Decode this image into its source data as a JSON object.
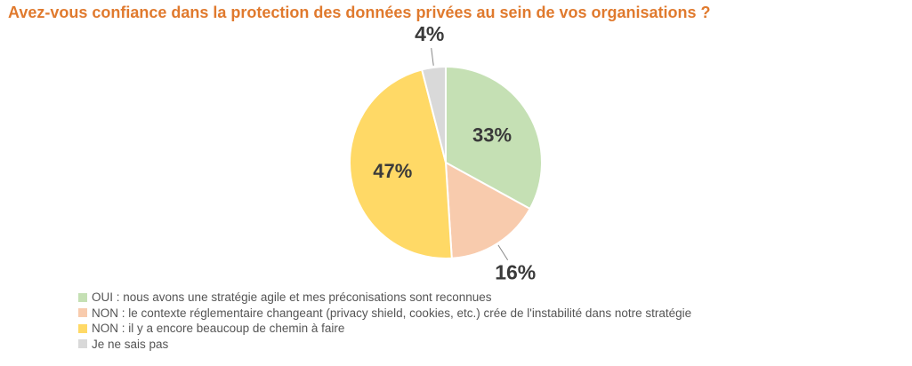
{
  "chart_data": {
    "type": "pie",
    "title": "Avez-vous confiance dans la protection des données privées au sein de vos organisations ?",
    "categories": [
      "OUI : nous avons une stratégie agile et mes préconisations sont reconnues",
      "NON : le contexte réglementaire changeant (privacy shield, cookies, etc.) crée de l'instabilité dans notre stratégie",
      "NON : il y a encore beaucoup de chemin à faire",
      "Je ne sais pas"
    ],
    "values": [
      33,
      16,
      47,
      4
    ],
    "labels": [
      "33%",
      "16%",
      "47%",
      "4%"
    ],
    "colors": [
      "#c5e0b4",
      "#f8cbad",
      "#ffd966",
      "#d9d9d9"
    ],
    "legend_position": "bottom-left"
  }
}
